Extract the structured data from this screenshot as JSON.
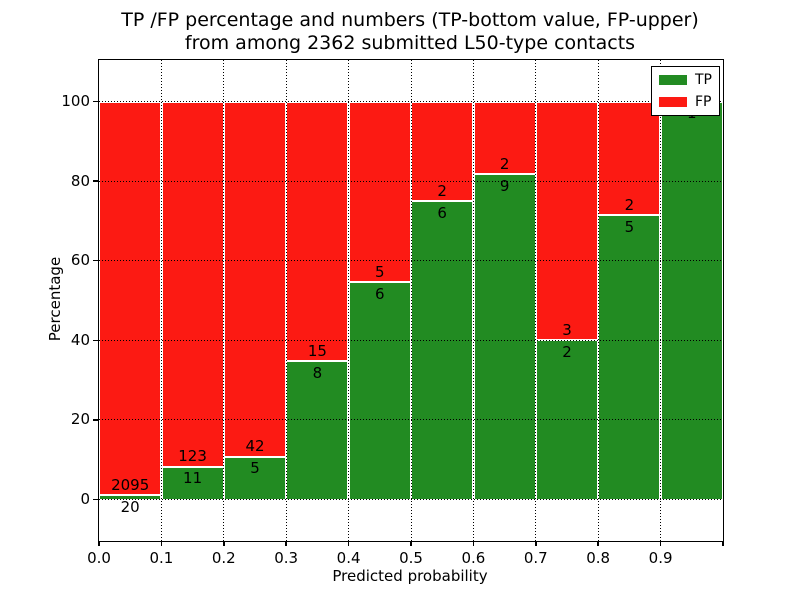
{
  "title": {
    "line1": "TP /FP percentage and numbers (TP-bottom value, FP-upper)",
    "line2": "from among 2362 submitted L50-type contacts"
  },
  "axes": {
    "xlabel": "Predicted probability",
    "ylabel": "Percentage",
    "xticks": [
      "0.0",
      "0.1",
      "0.2",
      "0.3",
      "0.4",
      "0.5",
      "0.6",
      "0.7",
      "0.8",
      "0.9"
    ],
    "yticks": [
      "0",
      "20",
      "40",
      "60",
      "80",
      "100"
    ]
  },
  "legend": {
    "entries": [
      {
        "label": "TP",
        "color": "#228b22"
      },
      {
        "label": "FP",
        "color": "#fc1a13"
      }
    ]
  },
  "chart_data": {
    "type": "bar",
    "stacked": true,
    "normalized": "percent",
    "title": "TP /FP percentage and numbers (TP-bottom value, FP-upper) from among 2362 submitted L50-type contacts",
    "xlabel": "Predicted probability",
    "ylabel": "Percentage",
    "total_contacts": 2362,
    "bin_edges": [
      0.0,
      0.1,
      0.2,
      0.3,
      0.4,
      0.5,
      0.6,
      0.7,
      0.8,
      0.9,
      1.0
    ],
    "xlim": [
      0.0,
      1.0
    ],
    "ylim": [
      -10.5,
      110.5
    ],
    "yticks": [
      0,
      20,
      40,
      60,
      80,
      100
    ],
    "grid": "dotted",
    "legend_position": "upper right",
    "series": [
      {
        "name": "TP",
        "color": "#228b22",
        "counts": [
          20,
          11,
          5,
          8,
          6,
          6,
          9,
          2,
          5,
          1
        ],
        "percent": [
          0.95,
          8.21,
          10.64,
          34.78,
          54.55,
          75.0,
          81.82,
          40.0,
          71.43,
          100.0
        ]
      },
      {
        "name": "FP",
        "color": "#fc1a13",
        "counts": [
          2095,
          123,
          42,
          15,
          5,
          2,
          2,
          3,
          2,
          0
        ],
        "percent": [
          99.05,
          91.79,
          89.36,
          65.22,
          45.45,
          25.0,
          18.18,
          60.0,
          28.57,
          0.0
        ]
      }
    ]
  }
}
